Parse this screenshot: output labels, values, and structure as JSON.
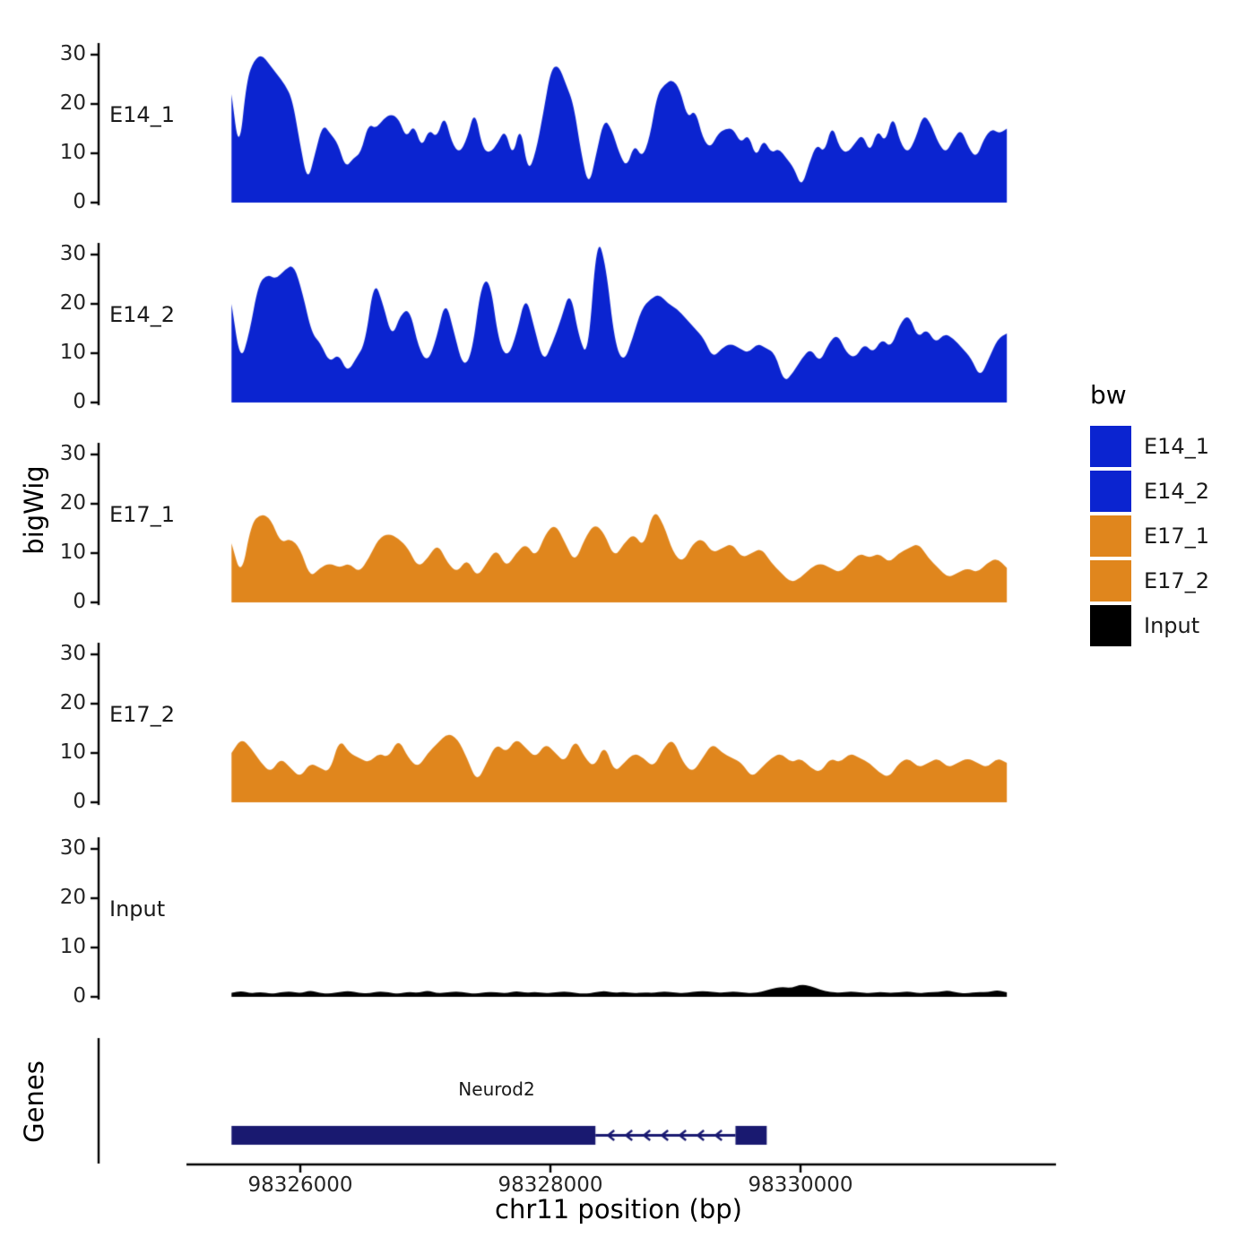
{
  "figure": {
    "x_axis_title": "chr11 position (bp)",
    "y_axis_title_signal": "bigWig",
    "y_axis_title_genes": "Genes"
  },
  "legend": {
    "title": "bw"
  },
  "chart_data": {
    "type": "area",
    "title": "",
    "xlabel": "chr11 position (bp)",
    "ylabel": "bigWig",
    "x_start": 98325450,
    "x_end": 98331650,
    "x_ticks": [
      98326000,
      98328000,
      98330000
    ],
    "y_ticks": [
      0,
      10,
      20,
      30
    ],
    "ylim": [
      0,
      35
    ],
    "grid": false,
    "legend_position": "right",
    "tracks": [
      {
        "name": "E14_1",
        "color": "#0B24D0",
        "values": [
          22,
          10,
          25,
          29,
          30,
          28,
          26,
          24,
          21,
          12,
          4,
          10,
          16,
          14,
          12,
          7,
          9,
          10,
          16,
          15,
          17,
          18,
          17,
          13,
          16,
          11,
          15,
          13,
          18,
          12,
          10,
          13,
          19,
          11,
          10,
          12,
          15,
          9,
          16,
          6,
          10,
          18,
          27,
          28,
          24,
          20,
          10,
          3,
          10,
          17,
          15,
          10,
          7,
          12,
          9,
          13,
          22,
          24,
          25,
          23,
          17,
          19,
          13,
          11,
          14,
          15,
          15,
          12,
          14,
          9,
          13,
          10,
          11,
          9,
          7,
          3,
          8,
          12,
          10,
          16,
          11,
          10,
          12,
          14,
          10,
          15,
          12,
          18,
          12,
          10,
          13,
          18,
          16,
          12,
          10,
          13,
          15,
          11,
          9,
          13,
          15,
          14,
          15
        ]
      },
      {
        "name": "E14_2",
        "color": "#0B24D0",
        "values": [
          20,
          8,
          14,
          24,
          26,
          25,
          27,
          28,
          22,
          14,
          12,
          8,
          10,
          6,
          9,
          12,
          25,
          20,
          13,
          18,
          19,
          11,
          8,
          13,
          21,
          14,
          7,
          10,
          24,
          25,
          12,
          9,
          14,
          22,
          15,
          8,
          12,
          17,
          23,
          13,
          9,
          34,
          28,
          12,
          8,
          13,
          19,
          21,
          22,
          20,
          19,
          17,
          15,
          13,
          9,
          11,
          12,
          11,
          10,
          12,
          11,
          10,
          4,
          6,
          9,
          11,
          8,
          12,
          14,
          10,
          9,
          12,
          10,
          13,
          11,
          16,
          18,
          13,
          15,
          12,
          14,
          13,
          11,
          9,
          5,
          9,
          13,
          14
        ]
      },
      {
        "name": "E17_1",
        "color": "#E0861D",
        "values": [
          12,
          5,
          16,
          18,
          17,
          12,
          13,
          11,
          5,
          7,
          8,
          7,
          8,
          6,
          9,
          13,
          14,
          13,
          11,
          7,
          9,
          12,
          8,
          6,
          9,
          5,
          8,
          11,
          7,
          10,
          12,
          9,
          14,
          16,
          12,
          8,
          13,
          16,
          14,
          9,
          12,
          14,
          11,
          19,
          16,
          10,
          8,
          12,
          13,
          10,
          11,
          12,
          9,
          10,
          11,
          8,
          6,
          4,
          5,
          7,
          8,
          7,
          6,
          8,
          10,
          9,
          10,
          8,
          10,
          11,
          12,
          9,
          7,
          5,
          6,
          7,
          6,
          8,
          9,
          7
        ]
      },
      {
        "name": "E17_2",
        "color": "#E0861D",
        "values": [
          10,
          13,
          11,
          8,
          6,
          9,
          7,
          5,
          8,
          7,
          6,
          13,
          10,
          9,
          8,
          10,
          9,
          13,
          9,
          7,
          10,
          12,
          14,
          13,
          9,
          4,
          8,
          12,
          10,
          13,
          11,
          9,
          12,
          10,
          8,
          13,
          9,
          7,
          12,
          6,
          8,
          10,
          9,
          7,
          11,
          13,
          8,
          6,
          9,
          12,
          10,
          9,
          8,
          5,
          7,
          9,
          10,
          8,
          9,
          7,
          6,
          9,
          8,
          10,
          9,
          8,
          6,
          5,
          8,
          9,
          7,
          8,
          9,
          7,
          8,
          9,
          8,
          7,
          9,
          8
        ]
      },
      {
        "name": "Input",
        "color": "#000000",
        "values": [
          0.8,
          1.2,
          0.7,
          1,
          0.6,
          0.9,
          1.1,
          0.7,
          1.3,
          0.8,
          0.6,
          1,
          1.2,
          0.8,
          0.7,
          1.1,
          0.9,
          0.6,
          1,
          0.8,
          1.3,
          0.7,
          0.9,
          1.1,
          0.8,
          0.6,
          1,
          0.9,
          0.7,
          1.2,
          0.8,
          1,
          0.7,
          0.9,
          1.1,
          0.8,
          0.6,
          0.9,
          1.2,
          0.8,
          1,
          0.7,
          0.9,
          0.8,
          1.1,
          0.9,
          0.7,
          1,
          1.2,
          1,
          0.8,
          1.1,
          0.9,
          0.7,
          1,
          1.6,
          2,
          1.8,
          2.5,
          2.2,
          1.4,
          1,
          0.8,
          1.1,
          0.9,
          0.7,
          1,
          0.8,
          0.9,
          1.1,
          0.7,
          0.9,
          1,
          1.3,
          0.8,
          0.7,
          1,
          0.9,
          1.4,
          0.9
        ]
      }
    ],
    "genes": {
      "axis_label": "Genes",
      "items": [
        {
          "name": "Neurod2",
          "strand": "-",
          "color": "#191970",
          "start": 98325450,
          "end": 98329730,
          "exons": [
            [
              98325450,
              98328360
            ],
            [
              98329480,
              98329730
            ]
          ],
          "intron": [
            98328360,
            98329480
          ]
        }
      ]
    }
  }
}
